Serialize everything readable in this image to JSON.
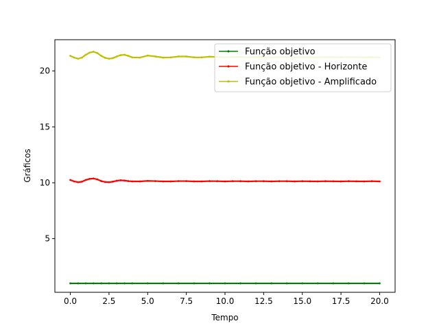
{
  "chart_data": {
    "type": "line",
    "title": "",
    "xlabel": "Tempo",
    "ylabel": "Gráficos",
    "xlim": [
      -1.0,
      21.0
    ],
    "ylim": [
      0.2,
      22.8
    ],
    "xticks": [
      0.0,
      2.5,
      5.0,
      7.5,
      10.0,
      12.5,
      15.0,
      17.5,
      20.0
    ],
    "xtick_labels": [
      "0.0",
      "2.5",
      "5.0",
      "7.5",
      "10.0",
      "12.5",
      "15.0",
      "17.5",
      "20.0"
    ],
    "yticks": [
      5,
      10,
      15,
      20
    ],
    "ytick_labels": [
      "5",
      "10",
      "15",
      "20"
    ],
    "grid": false,
    "legend_position": "top-right",
    "series": [
      {
        "name": "Função objetivo",
        "color": "#008000",
        "marker": "dot",
        "x": [
          0,
          0.5,
          1,
          1.5,
          2,
          2.5,
          3,
          3.5,
          4,
          5,
          6,
          7,
          8,
          9,
          10,
          11,
          12,
          13,
          14,
          15,
          16,
          17,
          18,
          19,
          20
        ],
        "y": [
          1.0,
          1.0,
          1.0,
          1.0,
          1.0,
          1.0,
          1.0,
          1.0,
          1.0,
          1.0,
          1.0,
          1.0,
          1.0,
          1.0,
          1.0,
          1.0,
          1.0,
          1.0,
          1.0,
          1.0,
          1.0,
          1.0,
          1.0,
          1.0,
          1.0
        ]
      },
      {
        "name": "Função objetivo - Horizonte",
        "color": "#ff0000",
        "marker": "dot",
        "x": [
          0,
          0.25,
          0.5,
          0.75,
          1,
          1.25,
          1.5,
          1.75,
          2,
          2.25,
          2.5,
          2.75,
          3,
          3.25,
          3.5,
          3.75,
          4,
          4.5,
          5,
          5.5,
          6,
          6.5,
          7,
          7.5,
          8,
          8.5,
          9,
          9.5,
          10,
          10.5,
          11,
          11.5,
          12,
          12.5,
          13,
          13.5,
          14,
          14.5,
          15,
          15.5,
          16,
          16.5,
          17,
          17.5,
          18,
          18.5,
          19,
          19.5,
          20
        ],
        "y": [
          10.25,
          10.12,
          10.05,
          10.1,
          10.25,
          10.35,
          10.38,
          10.3,
          10.15,
          10.07,
          10.05,
          10.1,
          10.18,
          10.22,
          10.2,
          10.15,
          10.12,
          10.12,
          10.17,
          10.15,
          10.12,
          10.12,
          10.15,
          10.15,
          10.12,
          10.12,
          10.15,
          10.14,
          10.12,
          10.14,
          10.14,
          10.12,
          10.14,
          10.14,
          10.12,
          10.14,
          10.14,
          10.12,
          10.14,
          10.13,
          10.12,
          10.14,
          10.13,
          10.12,
          10.14,
          10.13,
          10.12,
          10.14,
          10.12
        ]
      },
      {
        "name": "Função objetivo - Amplificado",
        "color": "#bfbf00",
        "marker": "dot",
        "x": [
          0,
          0.25,
          0.5,
          0.75,
          1,
          1.25,
          1.5,
          1.75,
          2,
          2.25,
          2.5,
          2.75,
          3,
          3.25,
          3.5,
          3.75,
          4,
          4.5,
          5,
          5.5,
          6,
          6.5,
          7,
          7.5,
          8,
          8.5,
          9,
          9.5,
          10,
          10.5,
          11,
          11.5,
          12,
          12.5,
          13,
          13.5,
          14,
          14.5,
          15,
          15.5,
          16,
          16.5,
          17,
          17.5,
          18,
          18.5,
          19,
          19.5,
          20
        ],
        "y": [
          21.35,
          21.2,
          21.1,
          21.2,
          21.45,
          21.65,
          21.72,
          21.6,
          21.35,
          21.18,
          21.1,
          21.15,
          21.3,
          21.42,
          21.45,
          21.35,
          21.22,
          21.2,
          21.38,
          21.3,
          21.2,
          21.22,
          21.3,
          21.3,
          21.22,
          21.22,
          21.28,
          21.26,
          21.22,
          21.26,
          21.26,
          21.22,
          21.26,
          21.25,
          21.22,
          21.25,
          21.25,
          21.22,
          21.25,
          21.24,
          21.22,
          21.25,
          21.24,
          21.22,
          21.25,
          21.24,
          21.22,
          21.24,
          21.22
        ]
      }
    ]
  }
}
